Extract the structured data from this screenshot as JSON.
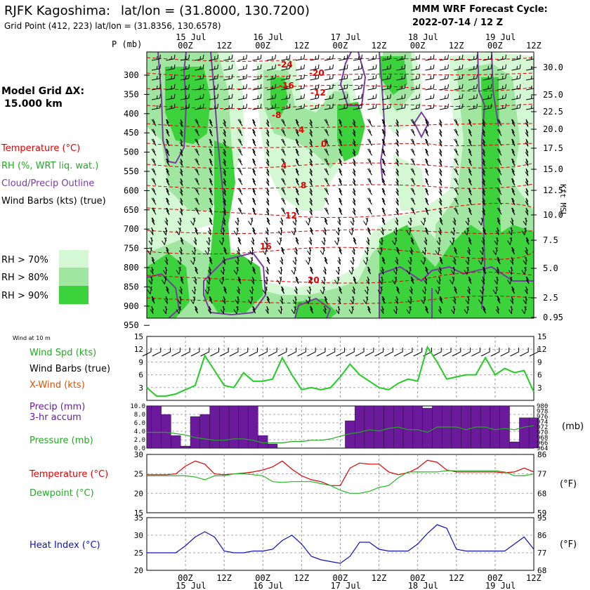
{
  "header": {
    "station": "RJFK Kagoshima:",
    "latlon": "lat/lon = (31.8000, 130.7200)",
    "grid_point": "Grid Point (412, 223) lat/lon = (31.8356, 130.6578)",
    "cycle_title": "MMM WRF Forecast Cycle:",
    "cycle": "2022-07-14 / 12  Z"
  },
  "legend": {
    "model_grid": "Model Grid ΔX:",
    "model_grid_value": "15.000 km",
    "temperature": "Temperature (°C)",
    "rh": "RH (%, WRT liq. wat.)",
    "cloud": "Cloud/Precip Outline",
    "barbs": "Wind Barbs (kts) (true)",
    "rh70": "RH > 70%",
    "rh80": "RH > 80%",
    "rh90": "RH > 90%",
    "colors": {
      "rh70": "#d4f7d4",
      "rh80": "#a0e6a0",
      "rh90": "#3cd23c",
      "temp": "#e00000",
      "cloud": "#7a3ca0"
    }
  },
  "time_axis": {
    "dates": [
      "15 Jul",
      "16 Jul",
      "17 Jul",
      "18 Jul",
      "19 Jul"
    ],
    "hours": [
      "00Z",
      "12Z",
      "00Z",
      "12Z",
      "00Z",
      "12Z",
      "00Z",
      "12Z",
      "00Z",
      "12Z"
    ]
  },
  "upper_panel": {
    "p_label": "P (mb)",
    "pressure_levels": [
      "300",
      "350",
      "400",
      "450",
      "500",
      "550",
      "600",
      "650",
      "700",
      "750",
      "800",
      "850",
      "900",
      "950"
    ],
    "height_label": "Kft MSL",
    "heights": [
      "30.0",
      "25.0",
      "22.5",
      "20.0",
      "17.5",
      "15.0",
      "12.5",
      "10.0",
      "7.5",
      "5.0",
      "2.5",
      "0.95"
    ],
    "temp_labels": [
      "-24",
      "-20",
      "-16",
      "-12",
      "-8",
      "-4",
      "0",
      "4",
      "8",
      "12",
      "16",
      "20"
    ]
  },
  "surface_panel": {
    "wind_title": "Wind at 10 m",
    "wind_spd": "Wind Spd (kts)",
    "wind_barbs": "Wind Barbs (true)",
    "xwind": "X-Wind (kts)",
    "precip": "Precip (mm)",
    "precip_sub": "3-hr accum",
    "pressure": "Pressure (mb)",
    "pressure_unit": "(mb)",
    "temperature": "Temperature (°C)",
    "dewpoint": "Dewpoint (°C)",
    "unit_f": "(°F)",
    "heat_index": "Heat Index (°C)",
    "unit_f2": "(°F)"
  },
  "chart_data": [
    {
      "type": "line",
      "title": "Wind Spd (kts)",
      "time_hours": [
        0,
        3,
        6,
        9,
        12,
        15,
        18,
        21,
        24,
        27,
        30,
        33,
        36,
        39,
        42,
        45,
        48,
        51,
        54,
        57,
        60,
        63,
        66,
        69,
        72,
        75,
        78,
        81,
        84,
        87,
        90,
        93,
        96,
        99,
        102,
        105,
        108,
        111,
        114,
        117,
        120
      ],
      "y_ticks": [
        3,
        6,
        9,
        12,
        15
      ],
      "ylim": [
        0,
        15
      ],
      "series": [
        {
          "name": "Wind Spd (kts)",
          "color": "#22cc22",
          "values": [
            3,
            1,
            1,
            1.5,
            2.5,
            3.5,
            10.5,
            7,
            3.5,
            3,
            6.5,
            4.5,
            4.5,
            5,
            10,
            6,
            2.5,
            3,
            2.5,
            3,
            5.5,
            8.5,
            6,
            4.5,
            3,
            2.5,
            4,
            5,
            4.5,
            12.5,
            9,
            5,
            5.5,
            6,
            6,
            10,
            6,
            7.5,
            6.5,
            7,
            2
          ]
        }
      ]
    },
    {
      "type": "bar",
      "title": "Precip (mm) 3-hr accum",
      "time_hours": [
        0,
        3,
        6,
        9,
        12,
        15,
        18,
        21,
        24,
        27,
        30,
        33,
        36,
        39,
        42,
        45,
        48,
        51,
        54,
        57,
        60,
        63,
        66,
        69,
        72,
        75,
        78,
        81,
        84,
        87,
        90,
        93,
        96,
        99,
        102,
        105,
        108,
        111,
        114,
        117,
        120
      ],
      "y_ticks": [
        "0.0",
        "2.0",
        "4.0",
        "6.0",
        "8.0",
        "10.0"
      ],
      "ylim": [
        0,
        10
      ],
      "values": [
        10,
        10,
        8,
        3,
        0.5,
        7.5,
        8,
        10,
        10,
        10,
        10,
        10,
        3,
        1,
        0,
        0,
        0,
        0,
        0,
        0,
        0,
        6.5,
        10,
        10,
        10,
        10,
        10,
        10,
        10,
        9.5,
        10,
        10,
        10,
        10,
        10,
        10,
        10,
        10,
        1.5,
        7.2,
        7.2
      ],
      "color": "#6a1a9a",
      "pressure_series": {
        "name": "Pressure (mb)",
        "color": "#22aa22",
        "right_ticks": [
          "964",
          "966",
          "968",
          "970",
          "972",
          "974",
          "976",
          "978",
          "980"
        ],
        "values": [
          970,
          970,
          970,
          969.5,
          969,
          968,
          967.5,
          967,
          967,
          967.5,
          967.5,
          967,
          966,
          966,
          966,
          966.5,
          966.5,
          967,
          967,
          967.5,
          968.5,
          969.5,
          970,
          971,
          970.5,
          971.5,
          972,
          971,
          971,
          970,
          972,
          972,
          972,
          971,
          972,
          972,
          971,
          971.5,
          971,
          972,
          972.5
        ]
      }
    },
    {
      "type": "line",
      "title": "Temperature / Dewpoint (°C)",
      "time_hours": [
        0,
        3,
        6,
        9,
        12,
        15,
        18,
        21,
        24,
        27,
        30,
        33,
        36,
        39,
        42,
        45,
        48,
        51,
        54,
        57,
        60,
        63,
        66,
        69,
        72,
        75,
        78,
        81,
        84,
        87,
        90,
        93,
        96,
        99,
        102,
        105,
        108,
        111,
        114,
        117,
        120
      ],
      "y_ticks": [
        15,
        20,
        25,
        30
      ],
      "ylim": [
        15,
        30
      ],
      "right_ticks": [
        59,
        68,
        77,
        86
      ],
      "series": [
        {
          "name": "Temperature",
          "color": "#e00000",
          "values": [
            24.8,
            24.8,
            24.8,
            25,
            27,
            28.3,
            27.5,
            25,
            24.8,
            25,
            25.2,
            25.5,
            26,
            26.8,
            28.3,
            26.2,
            24.5,
            23.5,
            23,
            22,
            22,
            26.5,
            27.8,
            27.5,
            27.5,
            25.5,
            24.8,
            25.3,
            26.5,
            28.5,
            28,
            26,
            25.5,
            25.5,
            25.5,
            25.5,
            25.5,
            25.3,
            25.5,
            26.5,
            25.5
          ]
        },
        {
          "name": "Dewpoint",
          "color": "#22bb22",
          "values": [
            24.5,
            24.5,
            24.5,
            24.5,
            24.5,
            24.2,
            23.5,
            24.5,
            24.5,
            25,
            25,
            24.8,
            24.5,
            23,
            22.8,
            23,
            23,
            23,
            22.5,
            22,
            20.8,
            20,
            20,
            20.5,
            21.5,
            22,
            24,
            25.5,
            25.5,
            25.5,
            25.5,
            25.8,
            25.8,
            25.8,
            25.8,
            25.8,
            25.8,
            25.5,
            24.5,
            24.5,
            25
          ]
        }
      ]
    },
    {
      "type": "line",
      "title": "Heat Index (°C)",
      "time_hours": [
        0,
        3,
        6,
        9,
        12,
        15,
        18,
        21,
        24,
        27,
        30,
        33,
        36,
        39,
        42,
        45,
        48,
        51,
        54,
        57,
        60,
        63,
        66,
        69,
        72,
        75,
        78,
        81,
        84,
        87,
        90,
        93,
        96,
        99,
        102,
        105,
        108,
        111,
        114,
        117,
        120
      ],
      "y_ticks": [
        20,
        25,
        30,
        35
      ],
      "ylim": [
        20,
        35
      ],
      "right_ticks": [
        68,
        77,
        86,
        95
      ],
      "series": [
        {
          "name": "Heat Index",
          "color": "#1010c0",
          "values": [
            25,
            25,
            25,
            25,
            27,
            29.5,
            31,
            29.5,
            25.5,
            25,
            25,
            25.5,
            25.5,
            26,
            28.5,
            30,
            27.5,
            24,
            23,
            22.5,
            22,
            24,
            28,
            28,
            26,
            25.5,
            25.5,
            25.5,
            27.5,
            30.5,
            33,
            32,
            26,
            25.5,
            25.5,
            25.5,
            25.5,
            25.5,
            27.5,
            29.5,
            26
          ]
        }
      ]
    }
  ]
}
